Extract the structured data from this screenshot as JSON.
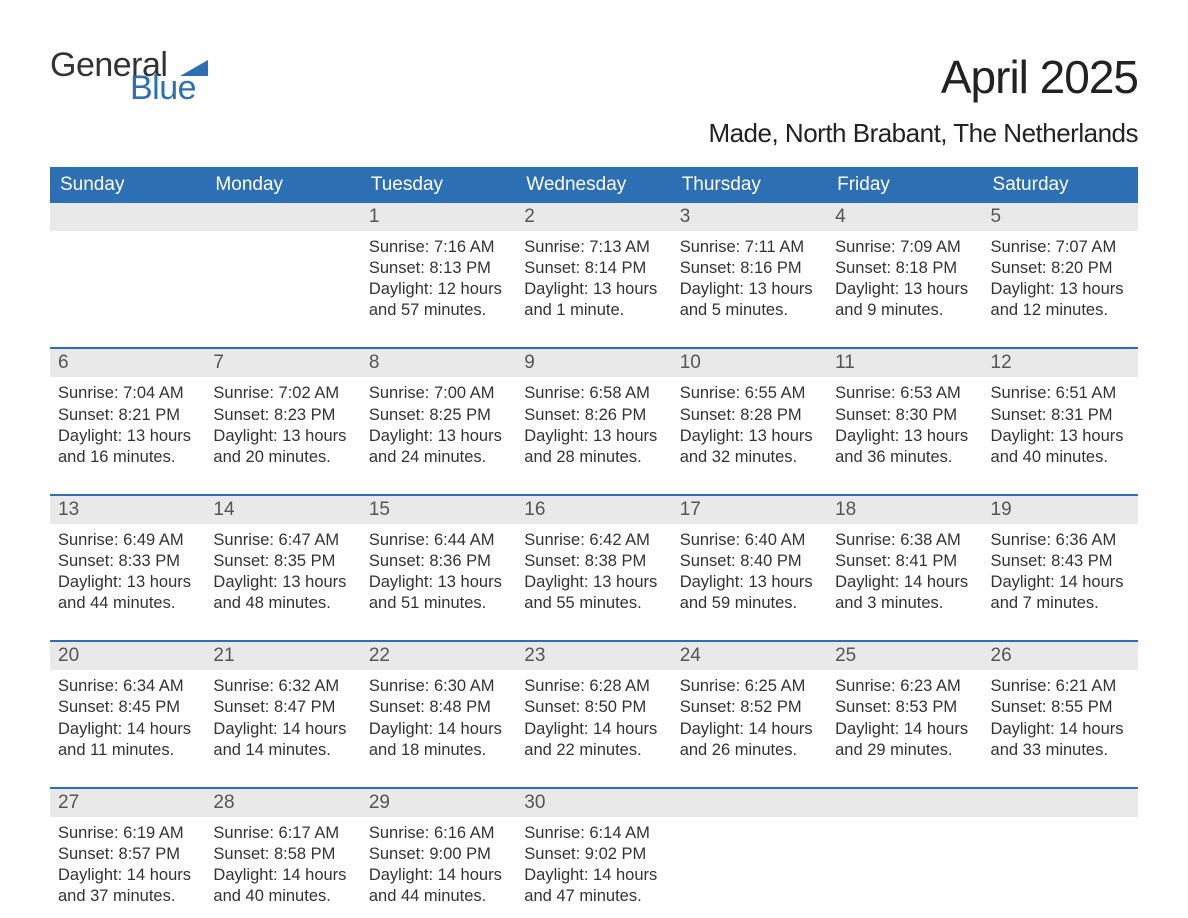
{
  "logo": {
    "text_general": "General",
    "text_blue": "Blue",
    "icon_color": "#2d6fb5"
  },
  "title": {
    "month": "April 2025",
    "location": "Made, North Brabant, The Netherlands"
  },
  "colors": {
    "header_bg": "#2d6fb5",
    "header_text": "#ffffff",
    "daynum_bg": "#e9e9e9",
    "body_text": "#333333",
    "page_bg": "#ffffff"
  },
  "day_headers": [
    "Sunday",
    "Monday",
    "Tuesday",
    "Wednesday",
    "Thursday",
    "Friday",
    "Saturday"
  ],
  "weeks": [
    [
      {
        "n": "",
        "sunrise": "",
        "sunset": "",
        "daylight": "",
        "empty": true
      },
      {
        "n": "",
        "sunrise": "",
        "sunset": "",
        "daylight": "",
        "empty": true
      },
      {
        "n": "1",
        "sunrise": "Sunrise: 7:16 AM",
        "sunset": "Sunset: 8:13 PM",
        "daylight": "Daylight: 12 hours and 57 minutes."
      },
      {
        "n": "2",
        "sunrise": "Sunrise: 7:13 AM",
        "sunset": "Sunset: 8:14 PM",
        "daylight": "Daylight: 13 hours and 1 minute."
      },
      {
        "n": "3",
        "sunrise": "Sunrise: 7:11 AM",
        "sunset": "Sunset: 8:16 PM",
        "daylight": "Daylight: 13 hours and 5 minutes."
      },
      {
        "n": "4",
        "sunrise": "Sunrise: 7:09 AM",
        "sunset": "Sunset: 8:18 PM",
        "daylight": "Daylight: 13 hours and 9 minutes."
      },
      {
        "n": "5",
        "sunrise": "Sunrise: 7:07 AM",
        "sunset": "Sunset: 8:20 PM",
        "daylight": "Daylight: 13 hours and 12 minutes."
      }
    ],
    [
      {
        "n": "6",
        "sunrise": "Sunrise: 7:04 AM",
        "sunset": "Sunset: 8:21 PM",
        "daylight": "Daylight: 13 hours and 16 minutes."
      },
      {
        "n": "7",
        "sunrise": "Sunrise: 7:02 AM",
        "sunset": "Sunset: 8:23 PM",
        "daylight": "Daylight: 13 hours and 20 minutes."
      },
      {
        "n": "8",
        "sunrise": "Sunrise: 7:00 AM",
        "sunset": "Sunset: 8:25 PM",
        "daylight": "Daylight: 13 hours and 24 minutes."
      },
      {
        "n": "9",
        "sunrise": "Sunrise: 6:58 AM",
        "sunset": "Sunset: 8:26 PM",
        "daylight": "Daylight: 13 hours and 28 minutes."
      },
      {
        "n": "10",
        "sunrise": "Sunrise: 6:55 AM",
        "sunset": "Sunset: 8:28 PM",
        "daylight": "Daylight: 13 hours and 32 minutes."
      },
      {
        "n": "11",
        "sunrise": "Sunrise: 6:53 AM",
        "sunset": "Sunset: 8:30 PM",
        "daylight": "Daylight: 13 hours and 36 minutes."
      },
      {
        "n": "12",
        "sunrise": "Sunrise: 6:51 AM",
        "sunset": "Sunset: 8:31 PM",
        "daylight": "Daylight: 13 hours and 40 minutes."
      }
    ],
    [
      {
        "n": "13",
        "sunrise": "Sunrise: 6:49 AM",
        "sunset": "Sunset: 8:33 PM",
        "daylight": "Daylight: 13 hours and 44 minutes."
      },
      {
        "n": "14",
        "sunrise": "Sunrise: 6:47 AM",
        "sunset": "Sunset: 8:35 PM",
        "daylight": "Daylight: 13 hours and 48 minutes."
      },
      {
        "n": "15",
        "sunrise": "Sunrise: 6:44 AM",
        "sunset": "Sunset: 8:36 PM",
        "daylight": "Daylight: 13 hours and 51 minutes."
      },
      {
        "n": "16",
        "sunrise": "Sunrise: 6:42 AM",
        "sunset": "Sunset: 8:38 PM",
        "daylight": "Daylight: 13 hours and 55 minutes."
      },
      {
        "n": "17",
        "sunrise": "Sunrise: 6:40 AM",
        "sunset": "Sunset: 8:40 PM",
        "daylight": "Daylight: 13 hours and 59 minutes."
      },
      {
        "n": "18",
        "sunrise": "Sunrise: 6:38 AM",
        "sunset": "Sunset: 8:41 PM",
        "daylight": "Daylight: 14 hours and 3 minutes."
      },
      {
        "n": "19",
        "sunrise": "Sunrise: 6:36 AM",
        "sunset": "Sunset: 8:43 PM",
        "daylight": "Daylight: 14 hours and 7 minutes."
      }
    ],
    [
      {
        "n": "20",
        "sunrise": "Sunrise: 6:34 AM",
        "sunset": "Sunset: 8:45 PM",
        "daylight": "Daylight: 14 hours and 11 minutes."
      },
      {
        "n": "21",
        "sunrise": "Sunrise: 6:32 AM",
        "sunset": "Sunset: 8:47 PM",
        "daylight": "Daylight: 14 hours and 14 minutes."
      },
      {
        "n": "22",
        "sunrise": "Sunrise: 6:30 AM",
        "sunset": "Sunset: 8:48 PM",
        "daylight": "Daylight: 14 hours and 18 minutes."
      },
      {
        "n": "23",
        "sunrise": "Sunrise: 6:28 AM",
        "sunset": "Sunset: 8:50 PM",
        "daylight": "Daylight: 14 hours and 22 minutes."
      },
      {
        "n": "24",
        "sunrise": "Sunrise: 6:25 AM",
        "sunset": "Sunset: 8:52 PM",
        "daylight": "Daylight: 14 hours and 26 minutes."
      },
      {
        "n": "25",
        "sunrise": "Sunrise: 6:23 AM",
        "sunset": "Sunset: 8:53 PM",
        "daylight": "Daylight: 14 hours and 29 minutes."
      },
      {
        "n": "26",
        "sunrise": "Sunrise: 6:21 AM",
        "sunset": "Sunset: 8:55 PM",
        "daylight": "Daylight: 14 hours and 33 minutes."
      }
    ],
    [
      {
        "n": "27",
        "sunrise": "Sunrise: 6:19 AM",
        "sunset": "Sunset: 8:57 PM",
        "daylight": "Daylight: 14 hours and 37 minutes."
      },
      {
        "n": "28",
        "sunrise": "Sunrise: 6:17 AM",
        "sunset": "Sunset: 8:58 PM",
        "daylight": "Daylight: 14 hours and 40 minutes."
      },
      {
        "n": "29",
        "sunrise": "Sunrise: 6:16 AM",
        "sunset": "Sunset: 9:00 PM",
        "daylight": "Daylight: 14 hours and 44 minutes."
      },
      {
        "n": "30",
        "sunrise": "Sunrise: 6:14 AM",
        "sunset": "Sunset: 9:02 PM",
        "daylight": "Daylight: 14 hours and 47 minutes."
      },
      {
        "n": "",
        "sunrise": "",
        "sunset": "",
        "daylight": "",
        "empty": true
      },
      {
        "n": "",
        "sunrise": "",
        "sunset": "",
        "daylight": "",
        "empty": true
      },
      {
        "n": "",
        "sunrise": "",
        "sunset": "",
        "daylight": "",
        "empty": true
      }
    ]
  ]
}
